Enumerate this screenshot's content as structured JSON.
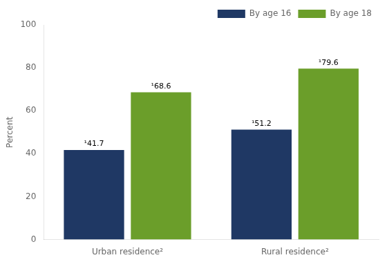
{
  "chart_data": {
    "type": "bar",
    "categories": [
      "Urban residence²",
      "Rural residence²"
    ],
    "series": [
      {
        "name": "By age 16",
        "color": "#1f3864",
        "values": [
          41.7,
          51.2
        ],
        "value_labels": [
          "¹41.7",
          "¹51.2"
        ]
      },
      {
        "name": "By age 18",
        "color": "#6b9e2a",
        "values": [
          68.6,
          79.6
        ],
        "value_labels": [
          "¹68.6",
          "¹79.6"
        ]
      }
    ],
    "ylabel": "Percent",
    "ylim": [
      0,
      100
    ],
    "yticks": [
      0,
      20,
      40,
      60,
      80,
      100
    ],
    "grid": false,
    "legend": "upper right",
    "data_labels": true
  }
}
